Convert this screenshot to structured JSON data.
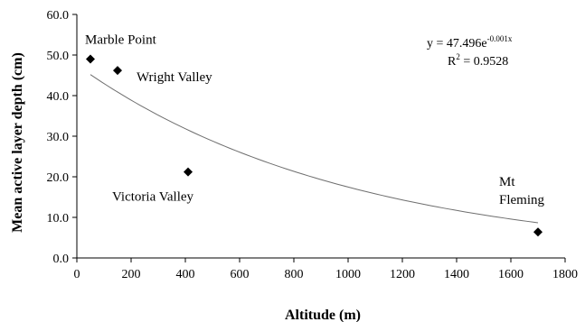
{
  "chart_data": {
    "type": "scatter",
    "xlabel": "Altitude (m)",
    "ylabel": "Mean active layer depth (cm)",
    "xlim": [
      0,
      1800
    ],
    "ylim": [
      0,
      60
    ],
    "x_ticks": [
      "0",
      "200",
      "400",
      "600",
      "800",
      "1000",
      "1200",
      "1400",
      "1600",
      "1800"
    ],
    "y_ticks": [
      "0.0",
      "10.0",
      "20.0",
      "30.0",
      "40.0",
      "50.0",
      "60.0"
    ],
    "points": [
      {
        "label": "Marble Point",
        "x": 50,
        "y": 49.0
      },
      {
        "label": "Wright Valley",
        "x": 150,
        "y": 46.2
      },
      {
        "label": "Victoria Valley",
        "x": 410,
        "y": 21.2
      },
      {
        "label_lines": [
          "Mt",
          "Fleming"
        ],
        "x": 1700,
        "y": 6.4
      }
    ],
    "trendline": {
      "kind": "exponential",
      "a": 47.496,
      "b": -0.001,
      "x_from": 50,
      "x_to": 1700,
      "equation_base": "y = 47.496e",
      "equation_exp": "-0.001x",
      "r2_prefix": "R",
      "r2_sup": "2",
      "r2_value": " = 0.9528"
    },
    "grid": false,
    "marker": "diamond"
  }
}
